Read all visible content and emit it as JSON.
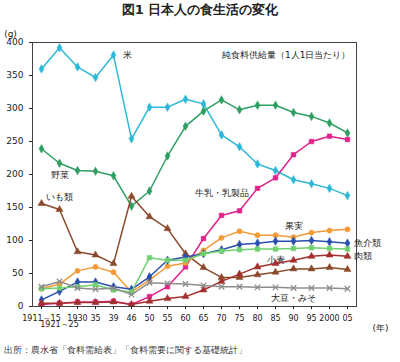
{
  "chart_data": {
    "type": "line",
    "title": "図1 日本人の食生活の変化",
    "subtitle": "純食料供給量（1人1日当たり）",
    "y_label": "(g)",
    "x_label": "(年)",
    "source": "出所：農水省「食料需給表」「食料需要に関する基礎統計」",
    "categories": [
      "1911～15",
      "1921～25",
      "1930",
      "35",
      "39",
      "46",
      "50",
      "55",
      "60",
      "65",
      "70",
      "75",
      "80",
      "85",
      "90",
      "95",
      "2000",
      "05"
    ],
    "series": [
      {
        "name": "米",
        "color": "#2fb8d6",
        "marker": "diamond",
        "values": [
          360,
          392,
          363,
          347,
          381,
          254,
          302,
          302,
          314,
          307,
          260,
          242,
          216,
          206,
          192,
          186,
          179,
          168
        ]
      },
      {
        "name": "野菜",
        "color": "#2e9e62",
        "marker": "diamond",
        "values": [
          239,
          217,
          206,
          205,
          198,
          152,
          175,
          228,
          273,
          296,
          313,
          298,
          305,
          305,
          294,
          288,
          278,
          263
        ]
      },
      {
        "name": "牛乳・乳製品",
        "color": "#e0218a",
        "marker": "square",
        "values": [
          3,
          5,
          7,
          7,
          8,
          3,
          15,
          30,
          60,
          103,
          138,
          145,
          179,
          195,
          230,
          250,
          258,
          253
        ]
      },
      {
        "name": "いも類",
        "color": "#8b4a2b",
        "marker": "triangle",
        "values": [
          156,
          147,
          83,
          78,
          65,
          167,
          136,
          118,
          80,
          59,
          44,
          44,
          48,
          52,
          57,
          57,
          59,
          56
        ]
      },
      {
        "name": "果実",
        "color": "#f29b38",
        "marker": "circle",
        "values": [
          27,
          34,
          54,
          60,
          52,
          22,
          40,
          61,
          66,
          85,
          104,
          114,
          108,
          108,
          105,
          112,
          115,
          117
        ]
      },
      {
        "name": "魚介類",
        "color": "#2a4fae",
        "marker": "diamond",
        "values": [
          10,
          23,
          37,
          37,
          30,
          26,
          45,
          70,
          75,
          80,
          86,
          94,
          96,
          99,
          99,
          100,
          98,
          96
        ]
      },
      {
        "name": "小麦",
        "color": "#6fd06f",
        "marker": "square",
        "values": [
          27,
          28,
          30,
          33,
          25,
          22,
          74,
          70,
          70,
          80,
          84,
          86,
          87,
          87,
          88,
          89,
          88,
          87
        ]
      },
      {
        "name": "肉類",
        "color": "#a3302f",
        "marker": "triangle",
        "values": [
          5,
          5,
          6,
          6,
          7,
          3,
          8,
          12,
          15,
          25,
          38,
          49,
          60,
          65,
          70,
          76,
          78,
          76
        ]
      },
      {
        "name": "大豆・みそ",
        "color": "#8e8e8e",
        "marker": "times",
        "values": [
          30,
          38,
          28,
          26,
          28,
          18,
          36,
          35,
          34,
          32,
          30,
          30,
          29,
          29,
          28,
          28,
          28,
          27
        ]
      }
    ],
    "ylim": [
      0,
      400
    ],
    "yticks": [
      0,
      50,
      100,
      150,
      200,
      250,
      300,
      350,
      400
    ],
    "grid": false
  }
}
